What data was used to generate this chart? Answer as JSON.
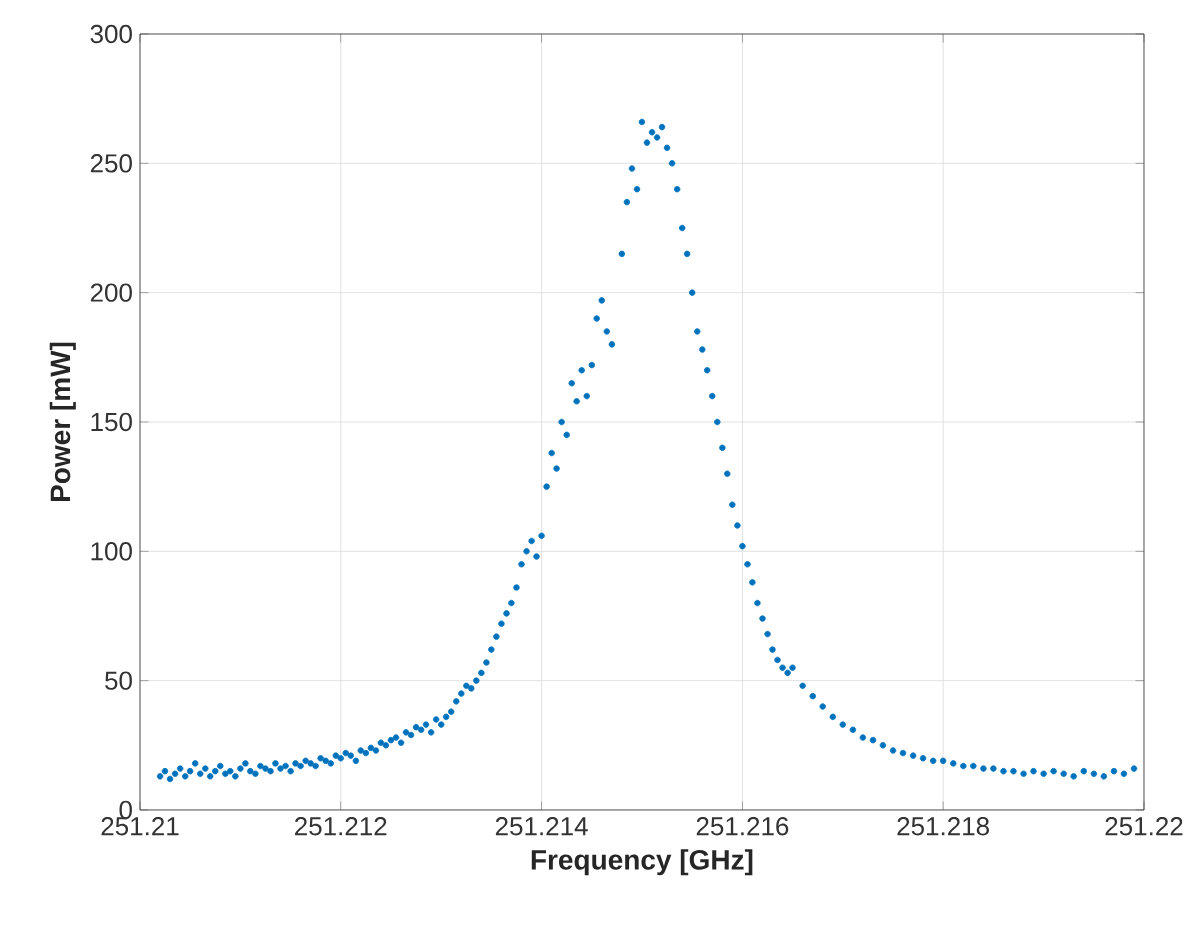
{
  "chart_data": {
    "type": "scatter",
    "xlabel": "Frequency [GHz]",
    "ylabel": "Power [mW]",
    "xlim": [
      251.21,
      251.22
    ],
    "xticks": [
      251.21,
      251.212,
      251.214,
      251.216,
      251.218,
      251.22
    ],
    "ylim": [
      0,
      300
    ],
    "yticks": [
      0,
      50,
      100,
      150,
      200,
      250,
      300
    ],
    "grid": true,
    "marker": "circle",
    "series": [
      {
        "color": "#0072bd",
        "x": [
          251.2102,
          251.21025,
          251.2103,
          251.21035,
          251.2104,
          251.21045,
          251.2105,
          251.21055,
          251.2106,
          251.21065,
          251.2107,
          251.21075,
          251.2108,
          251.21085,
          251.2109,
          251.21095,
          251.211,
          251.21105,
          251.2111,
          251.21115,
          251.2112,
          251.21125,
          251.2113,
          251.21135,
          251.2114,
          251.21145,
          251.2115,
          251.21155,
          251.2116,
          251.21165,
          251.2117,
          251.21175,
          251.2118,
          251.21185,
          251.2119,
          251.21195,
          251.212,
          251.21205,
          251.2121,
          251.21215,
          251.2122,
          251.21225,
          251.2123,
          251.21235,
          251.2124,
          251.21245,
          251.2125,
          251.21255,
          251.2126,
          251.21265,
          251.2127,
          251.21275,
          251.2128,
          251.21285,
          251.2129,
          251.21295,
          251.213,
          251.21305,
          251.2131,
          251.21315,
          251.2132,
          251.21325,
          251.2133,
          251.21335,
          251.2134,
          251.21345,
          251.2135,
          251.21355,
          251.2136,
          251.21365,
          251.2137,
          251.21375,
          251.2138,
          251.21385,
          251.2139,
          251.21395,
          251.214,
          251.21405,
          251.2141,
          251.21415,
          251.2142,
          251.21425,
          251.2143,
          251.21435,
          251.2144,
          251.21445,
          251.2145,
          251.21455,
          251.2146,
          251.21465,
          251.2147,
          251.2148,
          251.21485,
          251.2149,
          251.21495,
          251.215,
          251.21505,
          251.2151,
          251.21515,
          251.2152,
          251.21525,
          251.2153,
          251.21535,
          251.2154,
          251.21545,
          251.2155,
          251.21555,
          251.2156,
          251.21565,
          251.2157,
          251.21575,
          251.2158,
          251.21585,
          251.2159,
          251.21595,
          251.216,
          251.21605,
          251.2161,
          251.21615,
          251.2162,
          251.21625,
          251.2163,
          251.21635,
          251.2164,
          251.21645,
          251.2165,
          251.2166,
          251.2167,
          251.2168,
          251.2169,
          251.217,
          251.2171,
          251.2172,
          251.2173,
          251.2174,
          251.2175,
          251.2176,
          251.2177,
          251.2178,
          251.2179,
          251.218,
          251.2181,
          251.2182,
          251.2183,
          251.2184,
          251.2185,
          251.2186,
          251.2187,
          251.2188,
          251.2189,
          251.219,
          251.2191,
          251.2192,
          251.2193,
          251.2194,
          251.2195,
          251.2196,
          251.2197,
          251.2198,
          251.2199
        ],
        "values": [
          13,
          15,
          12,
          14,
          16,
          13,
          15,
          18,
          14,
          16,
          13,
          15,
          17,
          14,
          15,
          13,
          16,
          18,
          15,
          14,
          17,
          16,
          15,
          18,
          16,
          17,
          15,
          18,
          17,
          19,
          18,
          17,
          20,
          19,
          18,
          21,
          20,
          22,
          21,
          19,
          23,
          22,
          24,
          23,
          26,
          25,
          27,
          28,
          26,
          30,
          29,
          32,
          31,
          33,
          30,
          35,
          33,
          36,
          38,
          42,
          45,
          48,
          47,
          50,
          53,
          57,
          62,
          67,
          72,
          76,
          80,
          86,
          95,
          100,
          104,
          98,
          106,
          125,
          138,
          132,
          150,
          145,
          165,
          158,
          170,
          160,
          172,
          190,
          197,
          185,
          180,
          215,
          235,
          248,
          240,
          266,
          258,
          262,
          260,
          264,
          256,
          250,
          240,
          225,
          215,
          200,
          185,
          178,
          170,
          160,
          150,
          140,
          130,
          118,
          110,
          102,
          95,
          88,
          80,
          74,
          68,
          62,
          58,
          55,
          53,
          55,
          48,
          44,
          40,
          36,
          33,
          31,
          28,
          27,
          25,
          23,
          22,
          21,
          20,
          19,
          19,
          18,
          17,
          17,
          16,
          16,
          15,
          15,
          14,
          15,
          14,
          15,
          14,
          13,
          15,
          14,
          13,
          15,
          14,
          16
        ]
      }
    ]
  }
}
